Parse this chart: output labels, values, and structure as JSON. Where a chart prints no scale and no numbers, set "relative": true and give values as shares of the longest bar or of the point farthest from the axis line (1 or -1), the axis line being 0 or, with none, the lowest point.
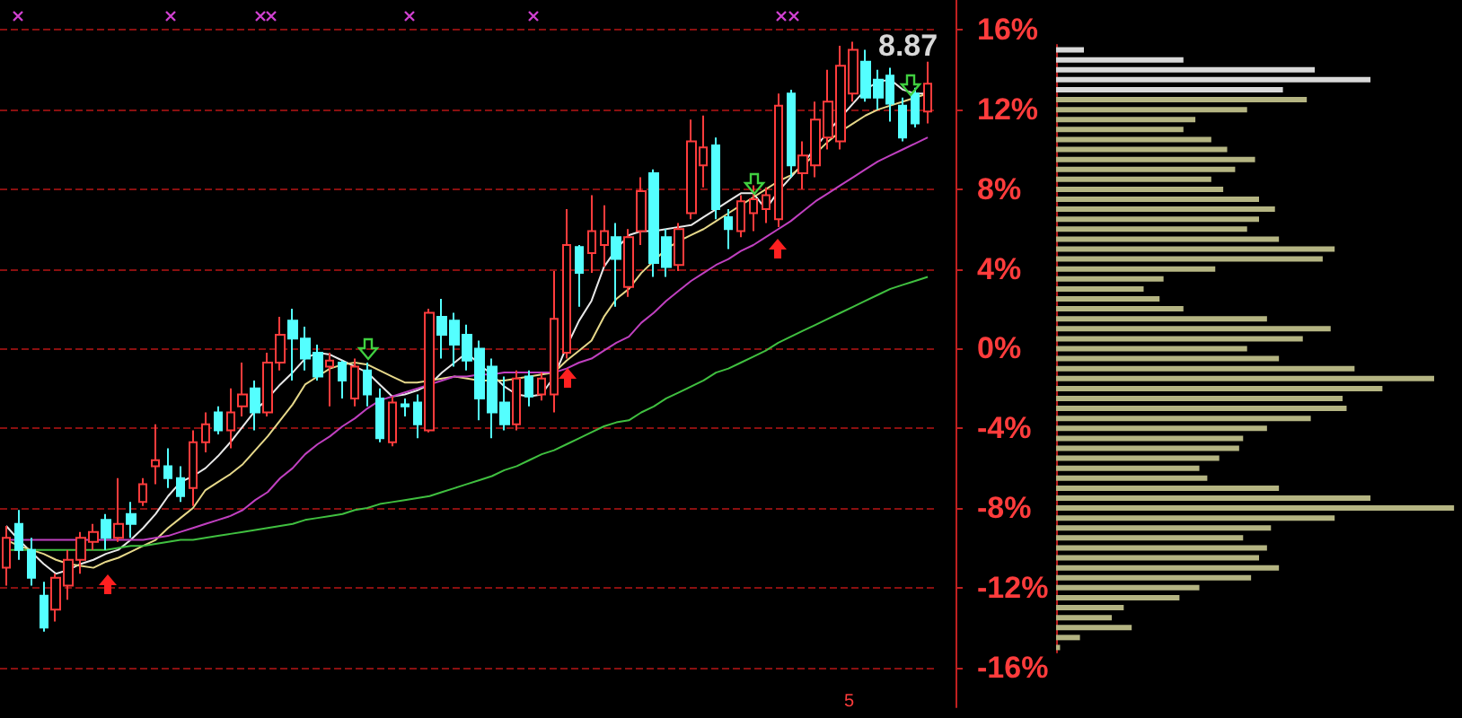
{
  "chart_data": [
    {
      "type": "candlestick",
      "categories": [
        null,
        null,
        null,
        null,
        null,
        null,
        null,
        null,
        null,
        null,
        null,
        null,
        null,
        null,
        null,
        null,
        null,
        null,
        null,
        null,
        null,
        null,
        null,
        null,
        null,
        null,
        null,
        null,
        null,
        null,
        null,
        null,
        null,
        null,
        null,
        null,
        null,
        null,
        null,
        null,
        null,
        null,
        null,
        null,
        null,
        null,
        null,
        null,
        null,
        null,
        null,
        null,
        null,
        null,
        null,
        null,
        null,
        null,
        null,
        null,
        null,
        null,
        null,
        null,
        null,
        null,
        null,
        null,
        null,
        null,
        null,
        null,
        null,
        null,
        null
      ],
      "ohlc": [
        [
          -11.0,
          -8.9,
          -11.9,
          -9.5
        ],
        [
          -8.8,
          -8.1,
          -10.6,
          -10.1
        ],
        [
          -10.1,
          -9.5,
          -11.9,
          -11.5
        ],
        [
          -12.4,
          -11.7,
          -14.2,
          -14.0
        ],
        [
          -13.1,
          -11.3,
          -13.7,
          -11.5
        ],
        [
          -11.9,
          -10.1,
          -12.6,
          -10.6
        ],
        [
          -10.6,
          -9.2,
          -11.3,
          -9.5
        ],
        [
          -9.7,
          -8.8,
          -10.1,
          -9.2
        ],
        [
          -8.6,
          -8.3,
          -10.1,
          -9.5
        ],
        [
          -9.5,
          -6.5,
          -9.7,
          -8.8
        ],
        [
          -8.3,
          -7.7,
          -9.5,
          -8.8
        ],
        [
          -7.7,
          -6.5,
          -7.9,
          -6.8
        ],
        [
          -5.9,
          -3.8,
          -6.8,
          -5.6
        ],
        [
          -5.9,
          -5.0,
          -7.0,
          -6.5
        ],
        [
          -6.5,
          -5.9,
          -7.7,
          -7.4
        ],
        [
          -7.0,
          -4.1,
          -7.9,
          -4.7
        ],
        [
          -4.7,
          -3.2,
          -5.2,
          -3.8
        ],
        [
          -3.2,
          -2.9,
          -4.3,
          -4.1
        ],
        [
          -4.1,
          -2.0,
          -5.0,
          -3.2
        ],
        [
          -2.9,
          -0.7,
          -3.4,
          -2.3
        ],
        [
          -2.0,
          -1.6,
          -4.1,
          -3.2
        ],
        [
          -3.2,
          -0.2,
          -3.4,
          -0.7
        ],
        [
          -0.7,
          1.6,
          -1.1,
          0.7
        ],
        [
          1.4,
          2.0,
          -1.6,
          0.5
        ],
        [
          0.5,
          1.1,
          -1.1,
          -0.5
        ],
        [
          -0.2,
          0.2,
          -1.6,
          -1.4
        ],
        [
          -0.9,
          -0.2,
          -2.9,
          -0.6
        ],
        [
          -0.7,
          -0.6,
          -2.5,
          -1.6
        ],
        [
          -2.5,
          -0.5,
          -2.9,
          -0.9
        ],
        [
          -1.1,
          -0.7,
          -2.9,
          -2.3
        ],
        [
          -2.5,
          -2.0,
          -4.7,
          -4.5
        ],
        [
          -4.7,
          -2.4,
          -4.9,
          -2.7
        ],
        [
          -2.8,
          -2.5,
          -3.4,
          -2.9
        ],
        [
          -2.7,
          -2.3,
          -4.5,
          -3.8
        ],
        [
          -4.1,
          2.0,
          -4.2,
          1.8
        ],
        [
          1.6,
          2.5,
          -0.5,
          0.7
        ],
        [
          1.4,
          1.8,
          -0.9,
          0.2
        ],
        [
          0.7,
          1.2,
          -1.1,
          -0.6
        ],
        [
          0.0,
          0.4,
          -3.6,
          -2.5
        ],
        [
          -0.9,
          -0.5,
          -4.5,
          -3.2
        ],
        [
          -2.7,
          -1.4,
          -4.1,
          -3.8
        ],
        [
          -3.8,
          -1.1,
          -4.1,
          -1.5
        ],
        [
          -1.4,
          -1.1,
          -2.9,
          -2.4
        ],
        [
          -2.3,
          -1.2,
          -2.6,
          -1.5
        ],
        [
          -2.3,
          3.9,
          -3.2,
          1.5
        ],
        [
          -0.2,
          7.0,
          -0.5,
          5.2
        ],
        [
          5.1,
          5.2,
          2.1,
          3.8
        ],
        [
          4.8,
          7.7,
          3.8,
          5.9
        ],
        [
          5.2,
          7.2,
          4.1,
          5.9
        ],
        [
          5.6,
          6.3,
          2.1,
          4.5
        ],
        [
          3.1,
          6.0,
          2.6,
          5.6
        ],
        [
          5.9,
          8.6,
          5.2,
          7.9
        ],
        [
          8.8,
          9.0,
          3.6,
          4.3
        ],
        [
          5.6,
          6.0,
          3.6,
          4.1
        ],
        [
          4.2,
          6.3,
          3.9,
          6.0
        ],
        [
          6.8,
          11.5,
          6.5,
          10.4
        ],
        [
          9.2,
          11.7,
          8.1,
          10.1
        ],
        [
          10.2,
          10.6,
          6.5,
          7.0
        ],
        [
          6.6,
          7.0,
          5.0,
          6.0
        ],
        [
          5.9,
          7.7,
          5.6,
          7.4
        ],
        [
          6.8,
          8.2,
          5.9,
          7.5
        ],
        [
          7.0,
          8.1,
          6.3,
          7.7
        ],
        [
          6.5,
          12.8,
          6.1,
          12.2
        ],
        [
          12.8,
          13.0,
          8.6,
          9.2
        ],
        [
          8.8,
          10.4,
          8.0,
          9.7
        ],
        [
          9.2,
          12.4,
          8.6,
          11.5
        ],
        [
          10.6,
          14.0,
          10.0,
          12.4
        ],
        [
          10.4,
          15.2,
          10.0,
          14.2
        ],
        [
          12.8,
          15.4,
          12.4,
          15.0
        ],
        [
          14.4,
          15.0,
          12.4,
          12.6
        ],
        [
          13.5,
          14.0,
          12.0,
          12.6
        ],
        [
          13.7,
          14.1,
          11.4,
          12.3
        ],
        [
          12.2,
          12.6,
          10.4,
          10.6
        ],
        [
          12.8,
          13.1,
          11.1,
          11.3
        ],
        [
          11.9,
          14.4,
          11.3,
          13.3
        ]
      ],
      "colors": [
        "#ff3c3c",
        "#54ffff",
        "#54ffff",
        "#54ffff",
        "#ff3c3c",
        "#ff3c3c",
        "#ff3c3c",
        "#ff3c3c",
        "#54ffff",
        "#ff3c3c",
        "#54ffff",
        "#ff3c3c",
        "#ff3c3c",
        "#54ffff",
        "#54ffff",
        "#ff3c3c",
        "#ff3c3c",
        "#54ffff",
        "#ff3c3c",
        "#ff3c3c",
        "#54ffff",
        "#ff3c3c",
        "#ff3c3c",
        "#54ffff",
        "#54ffff",
        "#54ffff",
        "#ff3c3c",
        "#54ffff",
        "#ff3c3c",
        "#54ffff",
        "#54ffff",
        "#ff3c3c",
        "#54ffff",
        "#54ffff",
        "#ff3c3c",
        "#54ffff",
        "#54ffff",
        "#54ffff",
        "#54ffff",
        "#54ffff",
        "#54ffff",
        "#ff3c3c",
        "#54ffff",
        "#ff3c3c",
        "#ff3c3c",
        "#ff3c3c",
        "#54ffff",
        "#ff3c3c",
        "#ff3c3c",
        "#54ffff",
        "#ff3c3c",
        "#ff3c3c",
        "#54ffff",
        "#54ffff",
        "#ff3c3c",
        "#ff3c3c",
        "#ff3c3c",
        "#54ffff",
        "#54ffff",
        "#ff3c3c",
        "#ff3c3c",
        "#ff3c3c",
        "#ff3c3c",
        "#54ffff",
        "#ff3c3c",
        "#ff3c3c",
        "#ff3c3c",
        "#ff3c3c",
        "#ff3c3c",
        "#54ffff",
        "#54ffff",
        "#54ffff",
        "#54ffff",
        "#54ffff",
        "#ff3c3c"
      ],
      "series": [
        {
          "type": "line",
          "color": "#e8e8e8",
          "values": [
            -8.9,
            -9.6,
            -10.2,
            -10.8,
            -11.3,
            -11.1,
            -10.8,
            -10.6,
            -10.3,
            -10.1,
            -9.6,
            -9.0,
            -8.3,
            -7.4,
            -6.7,
            -6.4,
            -6.0,
            -5.4,
            -4.7,
            -3.9,
            -3.1,
            -2.5,
            -1.8,
            -1.2,
            -0.5,
            -0.2,
            -0.3,
            -0.6,
            -0.9,
            -1.2,
            -1.8,
            -2.4,
            -2.3,
            -2.1,
            -1.8,
            -1.2,
            -0.7,
            -0.2,
            -0.8,
            -1.3,
            -1.9,
            -2.3,
            -2.4,
            -2.3,
            -1.4,
            0.1,
            1.4,
            2.4,
            4.1,
            5.0,
            5.7,
            5.9,
            5.9,
            6.0,
            6.1,
            6.2,
            6.6,
            7.0,
            7.4,
            7.8,
            7.8,
            7.0,
            7.9,
            8.6,
            9.3,
            10.1,
            10.9,
            11.6,
            12.3,
            13.0,
            13.4,
            13.5,
            13.0,
            12.8,
            12.8
          ]
        },
        {
          "type": "line",
          "color": "#e6d88a",
          "values": [
            -9.6,
            -9.9,
            -10.1,
            -10.3,
            -10.6,
            -10.8,
            -10.9,
            -11.0,
            -10.7,
            -10.5,
            -10.2,
            -9.9,
            -9.6,
            -9.0,
            -8.5,
            -8.0,
            -7.1,
            -6.7,
            -6.3,
            -5.8,
            -5.1,
            -4.4,
            -3.6,
            -2.8,
            -1.8,
            -1.4,
            -1.0,
            -0.8,
            -0.7,
            -0.8,
            -1.1,
            -1.4,
            -1.7,
            -1.7,
            -1.6,
            -1.5,
            -1.4,
            -1.5,
            -1.6,
            -1.6,
            -1.6,
            -1.5,
            -1.4,
            -1.3,
            -1.2,
            -0.6,
            -0.1,
            0.4,
            1.6,
            2.5,
            3.0,
            3.8,
            4.4,
            5.0,
            5.4,
            5.7,
            6.0,
            6.4,
            6.8,
            7.2,
            7.6,
            8.0,
            8.4,
            8.7,
            9.2,
            9.8,
            10.4,
            10.9,
            11.3,
            11.7,
            12.0,
            12.2,
            12.4,
            12.6,
            12.8
          ]
        },
        {
          "type": "line",
          "color": "#c040c0",
          "values": [
            -9.6,
            -9.6,
            -9.6,
            -9.6,
            -9.6,
            -9.6,
            -9.6,
            -9.6,
            -9.6,
            -9.6,
            -9.6,
            -9.6,
            -9.5,
            -9.4,
            -9.2,
            -9.0,
            -8.8,
            -8.6,
            -8.4,
            -8.1,
            -7.6,
            -7.2,
            -6.5,
            -6.0,
            -5.3,
            -4.8,
            -4.4,
            -3.9,
            -3.5,
            -3.0,
            -2.6,
            -2.4,
            -2.2,
            -2.0,
            -1.8,
            -1.6,
            -1.4,
            -1.4,
            -1.3,
            -1.3,
            -1.2,
            -1.2,
            -1.2,
            -1.2,
            -1.2,
            -1.0,
            -0.7,
            -0.5,
            -0.1,
            0.3,
            0.6,
            1.3,
            1.8,
            2.4,
            2.9,
            3.4,
            3.8,
            4.2,
            4.5,
            4.9,
            5.2,
            5.6,
            6.0,
            6.4,
            6.9,
            7.4,
            7.8,
            8.2,
            8.6,
            9.0,
            9.4,
            9.7,
            10.0,
            10.3,
            10.6
          ]
        },
        {
          "type": "line",
          "color": "#40c040",
          "values": [
            -10.1,
            -10.1,
            -10.1,
            -10.1,
            -10.1,
            -10.1,
            -10.1,
            -10.1,
            -10.1,
            -10.0,
            -9.9,
            -9.9,
            -9.8,
            -9.7,
            -9.6,
            -9.6,
            -9.5,
            -9.4,
            -9.3,
            -9.2,
            -9.1,
            -9.0,
            -8.9,
            -8.8,
            -8.6,
            -8.5,
            -8.4,
            -8.3,
            -8.1,
            -8.0,
            -7.8,
            -7.7,
            -7.6,
            -7.5,
            -7.4,
            -7.2,
            -7.0,
            -6.8,
            -6.6,
            -6.4,
            -6.1,
            -5.9,
            -5.6,
            -5.3,
            -5.1,
            -4.8,
            -4.5,
            -4.2,
            -3.9,
            -3.7,
            -3.6,
            -3.2,
            -2.9,
            -2.5,
            -2.2,
            -1.9,
            -1.6,
            -1.2,
            -1.0,
            -0.7,
            -0.4,
            -0.1,
            0.3,
            0.6,
            0.9,
            1.2,
            1.5,
            1.8,
            2.1,
            2.4,
            2.7,
            3.0,
            3.2,
            3.4,
            3.6
          ]
        }
      ],
      "ylim": [
        -18,
        17.5
      ],
      "yticks": [
        {
          "value": -16,
          "label": "-16%"
        },
        {
          "value": -12,
          "label": "-12%"
        },
        {
          "value": -8,
          "label": "-8%"
        },
        {
          "value": -4,
          "label": "-4%"
        },
        {
          "value": 0,
          "label": "0%"
        },
        {
          "value": 4,
          "label": "4%"
        },
        {
          "value": 8,
          "label": "8%"
        },
        {
          "value": 12,
          "label": "12%"
        },
        {
          "value": 16,
          "label": "16%"
        }
      ],
      "grid": "y",
      "tick_labels": "y",
      "annotations": [
        "8.87",
        "5"
      ]
    },
    {
      "type": "bar",
      "orientation": "horizontal",
      "relative": true,
      "tick_labels": false,
      "categories": [
        null,
        null,
        null,
        null,
        null,
        null,
        null,
        null,
        null,
        null,
        null,
        null,
        null,
        null,
        null,
        null,
        null,
        null,
        null,
        null,
        null,
        null,
        null,
        null,
        null,
        null,
        null,
        null,
        null,
        null,
        null,
        null,
        null,
        null,
        null,
        null,
        null,
        null,
        null,
        null,
        null,
        null,
        null,
        null,
        null,
        null,
        null,
        null,
        null,
        null,
        null,
        null,
        null,
        null,
        null,
        null,
        null,
        null,
        null,
        null,
        null
      ],
      "values": [
        0.07,
        0.32,
        0.65,
        0.79,
        0.57,
        0.63,
        0.48,
        0.35,
        0.32,
        0.39,
        0.43,
        0.5,
        0.45,
        0.39,
        0.42,
        0.51,
        0.55,
        0.51,
        0.48,
        0.56,
        0.7,
        0.67,
        0.4,
        0.27,
        0.22,
        0.26,
        0.32,
        0.53,
        0.69,
        0.62,
        0.48,
        0.56,
        0.75,
        0.95,
        0.82,
        0.72,
        0.73,
        0.64,
        0.53,
        0.47,
        0.46,
        0.41,
        0.36,
        0.38,
        0.56,
        0.79,
        1,
        0.7,
        0.54,
        0.47,
        0.53,
        0.51,
        0.56,
        0.49,
        0.36,
        0.31,
        0.17,
        0.14,
        0.19,
        0.06,
        0.01
      ],
      "colors": [
        "#d8d8d8",
        "#d8d8d8",
        "#d8d8d8",
        "#d8d8d8",
        "#d8d8d8",
        "#b4b482",
        "#b4b482",
        "#b4b482",
        "#b4b482",
        "#b4b482",
        "#b4b482",
        "#b4b482",
        "#b4b482",
        "#b4b482",
        "#b4b482",
        "#b4b482",
        "#b4b482",
        "#b4b482",
        "#b4b482",
        "#b4b482",
        "#b4b482",
        "#b4b482",
        "#b4b482",
        "#b4b482",
        "#b4b482",
        "#b4b482",
        "#b4b482",
        "#b4b482",
        "#b4b482",
        "#b4b482",
        "#b4b482",
        "#b4b482",
        "#b4b482",
        "#b4b482",
        "#b4b482",
        "#b4b482",
        "#b4b482",
        "#b4b482",
        "#b4b482",
        "#b4b482",
        "#b4b482",
        "#b4b482",
        "#b4b482",
        "#b4b482",
        "#b4b482",
        "#b4b482",
        "#b4b482",
        "#b4b482",
        "#b4b482",
        "#b4b482",
        "#b4b482",
        "#b4b482",
        "#b4b482",
        "#b4b482",
        "#b4b482",
        "#b4b482",
        "#b4b482",
        "#b4b482",
        "#b4b482",
        "#b4b482",
        "#b4b482"
      ]
    }
  ]
}
